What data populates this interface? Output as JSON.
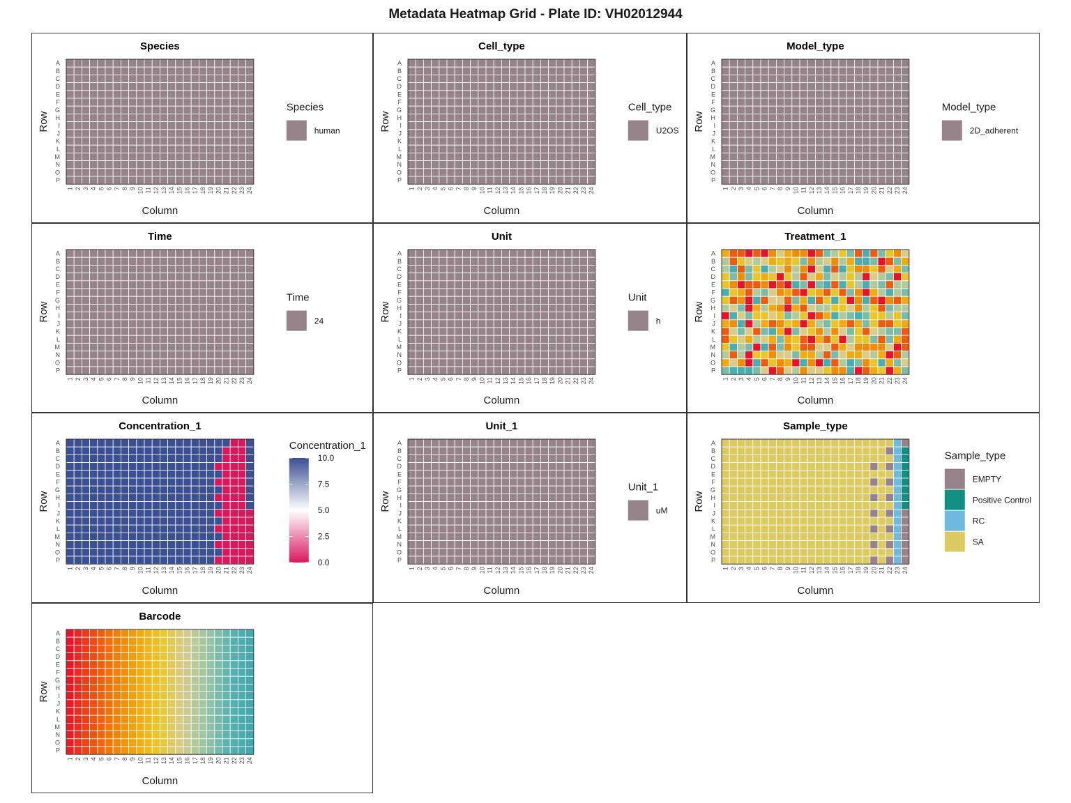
{
  "title": "Metadata Heatmap Grid - Plate ID: VH02012944",
  "chart_data": [
    {
      "type": "heatmap",
      "title": "Species",
      "xlabel": "Column",
      "ylabel": "Row",
      "rows": [
        "A",
        "B",
        "C",
        "D",
        "E",
        "F",
        "G",
        "H",
        "I",
        "J",
        "K",
        "L",
        "M",
        "N",
        "O",
        "P"
      ],
      "columns": [
        "1",
        "2",
        "3",
        "4",
        "5",
        "6",
        "7",
        "8",
        "9",
        "10",
        "11",
        "12",
        "13",
        "14",
        "15",
        "16",
        "17",
        "18",
        "19",
        "20",
        "21",
        "22",
        "23",
        "24"
      ],
      "mode": "uniform",
      "value": "human",
      "legend": {
        "title": "Species",
        "items": [
          {
            "label": "human",
            "color": "#968289"
          }
        ]
      }
    },
    {
      "type": "heatmap",
      "title": "Cell_type",
      "xlabel": "Column",
      "ylabel": "Row",
      "rows": [
        "A",
        "B",
        "C",
        "D",
        "E",
        "F",
        "G",
        "H",
        "I",
        "J",
        "K",
        "L",
        "M",
        "N",
        "O",
        "P"
      ],
      "columns": [
        "1",
        "2",
        "3",
        "4",
        "5",
        "6",
        "7",
        "8",
        "9",
        "10",
        "11",
        "12",
        "13",
        "14",
        "15",
        "16",
        "17",
        "18",
        "19",
        "20",
        "21",
        "22",
        "23",
        "24"
      ],
      "mode": "uniform",
      "value": "U2OS",
      "legend": {
        "title": "Cell_type",
        "items": [
          {
            "label": "U2OS",
            "color": "#968289"
          }
        ]
      }
    },
    {
      "type": "heatmap",
      "title": "Model_type",
      "xlabel": "Column",
      "ylabel": "Row",
      "rows": [
        "A",
        "B",
        "C",
        "D",
        "E",
        "F",
        "G",
        "H",
        "I",
        "J",
        "K",
        "L",
        "M",
        "N",
        "O",
        "P"
      ],
      "columns": [
        "1",
        "2",
        "3",
        "4",
        "5",
        "6",
        "7",
        "8",
        "9",
        "10",
        "11",
        "12",
        "13",
        "14",
        "15",
        "16",
        "17",
        "18",
        "19",
        "20",
        "21",
        "22",
        "23",
        "24"
      ],
      "mode": "uniform",
      "value": "2D_adherent",
      "legend": {
        "title": "Model_type",
        "items": [
          {
            "label": "2D_adherent",
            "color": "#968289"
          }
        ]
      }
    },
    {
      "type": "heatmap",
      "title": "Time",
      "xlabel": "Column",
      "ylabel": "Row",
      "rows": [
        "A",
        "B",
        "C",
        "D",
        "E",
        "F",
        "G",
        "H",
        "I",
        "J",
        "K",
        "L",
        "M",
        "N",
        "O",
        "P"
      ],
      "columns": [
        "1",
        "2",
        "3",
        "4",
        "5",
        "6",
        "7",
        "8",
        "9",
        "10",
        "11",
        "12",
        "13",
        "14",
        "15",
        "16",
        "17",
        "18",
        "19",
        "20",
        "21",
        "22",
        "23",
        "24"
      ],
      "mode": "uniform",
      "value": "24",
      "legend": {
        "title": "Time",
        "items": [
          {
            "label": "24",
            "color": "#968289"
          }
        ]
      }
    },
    {
      "type": "heatmap",
      "title": "Unit",
      "xlabel": "Column",
      "ylabel": "Row",
      "rows": [
        "A",
        "B",
        "C",
        "D",
        "E",
        "F",
        "G",
        "H",
        "I",
        "J",
        "K",
        "L",
        "M",
        "N",
        "O",
        "P"
      ],
      "columns": [
        "1",
        "2",
        "3",
        "4",
        "5",
        "6",
        "7",
        "8",
        "9",
        "10",
        "11",
        "12",
        "13",
        "14",
        "15",
        "16",
        "17",
        "18",
        "19",
        "20",
        "21",
        "22",
        "23",
        "24"
      ],
      "mode": "uniform",
      "value": "h",
      "legend": {
        "title": "Unit",
        "items": [
          {
            "label": "h",
            "color": "#968289"
          }
        ]
      }
    },
    {
      "type": "heatmap",
      "title": "Treatment_1",
      "xlabel": "Column",
      "ylabel": "Row",
      "rows": [
        "A",
        "B",
        "C",
        "D",
        "E",
        "F",
        "G",
        "H",
        "I",
        "J",
        "K",
        "L",
        "M",
        "N",
        "O",
        "P"
      ],
      "columns": [
        "1",
        "2",
        "3",
        "4",
        "5",
        "6",
        "7",
        "8",
        "9",
        "10",
        "11",
        "12",
        "13",
        "14",
        "15",
        "16",
        "17",
        "18",
        "19",
        "20",
        "21",
        "22",
        "23",
        "24"
      ],
      "mode": "categorical-many",
      "palette": [
        "#E8132A",
        "#EE5A0E",
        "#F08C06",
        "#F2AA10",
        "#EAC52A",
        "#DACC86",
        "#B2C99C",
        "#7BBCA9",
        "#4AADB0"
      ]
    },
    {
      "type": "heatmap",
      "title": "Concentration_1",
      "xlabel": "Column",
      "ylabel": "Row",
      "rows": [
        "A",
        "B",
        "C",
        "D",
        "E",
        "F",
        "G",
        "H",
        "I",
        "J",
        "K",
        "L",
        "M",
        "N",
        "O",
        "P"
      ],
      "columns": [
        "1",
        "2",
        "3",
        "4",
        "5",
        "6",
        "7",
        "8",
        "9",
        "10",
        "11",
        "12",
        "13",
        "14",
        "15",
        "16",
        "17",
        "18",
        "19",
        "20",
        "21",
        "22",
        "23",
        "24"
      ],
      "mode": "concentration",
      "scale": [
        0,
        10
      ],
      "default_value": 10,
      "zero_cells": {
        "20": [
          "D",
          "F",
          "H",
          "J",
          "L",
          "N",
          "P"
        ],
        "21": [
          "B",
          "C",
          "D",
          "E",
          "F",
          "G",
          "H",
          "I",
          "J",
          "K",
          "L",
          "M",
          "N",
          "O",
          "P"
        ],
        "22": [
          "A",
          "B",
          "C",
          "D",
          "E",
          "F",
          "G",
          "H",
          "I",
          "J",
          "K",
          "L",
          "M",
          "N",
          "O",
          "P"
        ],
        "23": [
          "A",
          "B",
          "C",
          "D",
          "E",
          "F",
          "G",
          "H",
          "I",
          "J",
          "K",
          "L",
          "M",
          "N",
          "O",
          "P"
        ],
        "24": [
          "J",
          "K",
          "L",
          "M",
          "N",
          "O",
          "P"
        ]
      },
      "legend": {
        "title": "Concentration_1",
        "ticks": [
          "10.0",
          "7.5",
          "5.0",
          "2.5",
          "0.0"
        ],
        "colors": {
          "high": "#3B4F93",
          "mid": "#FFFFFF",
          "low": "#D9185C"
        }
      }
    },
    {
      "type": "heatmap",
      "title": "Unit_1",
      "xlabel": "Column",
      "ylabel": "Row",
      "rows": [
        "A",
        "B",
        "C",
        "D",
        "E",
        "F",
        "G",
        "H",
        "I",
        "J",
        "K",
        "L",
        "M",
        "N",
        "O",
        "P"
      ],
      "columns": [
        "1",
        "2",
        "3",
        "4",
        "5",
        "6",
        "7",
        "8",
        "9",
        "10",
        "11",
        "12",
        "13",
        "14",
        "15",
        "16",
        "17",
        "18",
        "19",
        "20",
        "21",
        "22",
        "23",
        "24"
      ],
      "mode": "uniform",
      "value": "uM",
      "legend": {
        "title": "Unit_1",
        "items": [
          {
            "label": "uM",
            "color": "#968289"
          }
        ]
      }
    },
    {
      "type": "heatmap",
      "title": "Sample_type",
      "xlabel": "Column",
      "ylabel": "Row",
      "rows": [
        "A",
        "B",
        "C",
        "D",
        "E",
        "F",
        "G",
        "H",
        "I",
        "J",
        "K",
        "L",
        "M",
        "N",
        "O",
        "P"
      ],
      "columns": [
        "1",
        "2",
        "3",
        "4",
        "5",
        "6",
        "7",
        "8",
        "9",
        "10",
        "11",
        "12",
        "13",
        "14",
        "15",
        "16",
        "17",
        "18",
        "19",
        "20",
        "21",
        "22",
        "23",
        "24"
      ],
      "mode": "sample",
      "default": "SA",
      "cells": {
        "20": {
          "D": "EMPTY",
          "F": "EMPTY",
          "H": "EMPTY",
          "J": "EMPTY",
          "L": "EMPTY",
          "N": "EMPTY",
          "P": "EMPTY"
        },
        "22": {
          "B": "EMPTY",
          "D": "EMPTY",
          "F": "EMPTY",
          "H": "EMPTY",
          "J": "EMPTY",
          "L": "EMPTY",
          "N": "EMPTY",
          "P": "EMPTY"
        },
        "23": "RC",
        "24": {
          "A": "EMPTY",
          "B": "Positive Control",
          "C": "Positive Control",
          "D": "Positive Control",
          "E": "Positive Control",
          "F": "Positive Control",
          "G": "Positive Control",
          "H": "Positive Control",
          "I": "Positive Control",
          "J": "EMPTY",
          "K": "EMPTY",
          "L": "EMPTY",
          "M": "EMPTY",
          "N": "EMPTY",
          "O": "EMPTY",
          "P": "EMPTY"
        }
      },
      "legend": {
        "title": "Sample_type",
        "items": [
          {
            "label": "EMPTY",
            "color": "#968289"
          },
          {
            "label": "Positive Control",
            "color": "#128F83"
          },
          {
            "label": "RC",
            "color": "#6FB8DE"
          },
          {
            "label": "SA",
            "color": "#DCCB62"
          }
        ]
      }
    },
    {
      "type": "heatmap",
      "title": "Barcode",
      "xlabel": "Column",
      "ylabel": "Row",
      "rows": [
        "A",
        "B",
        "C",
        "D",
        "E",
        "F",
        "G",
        "H",
        "I",
        "J",
        "K",
        "L",
        "M",
        "N",
        "O",
        "P"
      ],
      "columns": [
        "1",
        "2",
        "3",
        "4",
        "5",
        "6",
        "7",
        "8",
        "9",
        "10",
        "11",
        "12",
        "13",
        "14",
        "15",
        "16",
        "17",
        "18",
        "19",
        "20",
        "21",
        "22",
        "23",
        "24"
      ],
      "mode": "barcode",
      "gradient": [
        "#E8132A",
        "#EF4A12",
        "#F07D08",
        "#F2A70F",
        "#EBC82A",
        "#D5CB8E",
        "#9BC6A4",
        "#5BB1B0",
        "#3FA8B0"
      ]
    }
  ]
}
